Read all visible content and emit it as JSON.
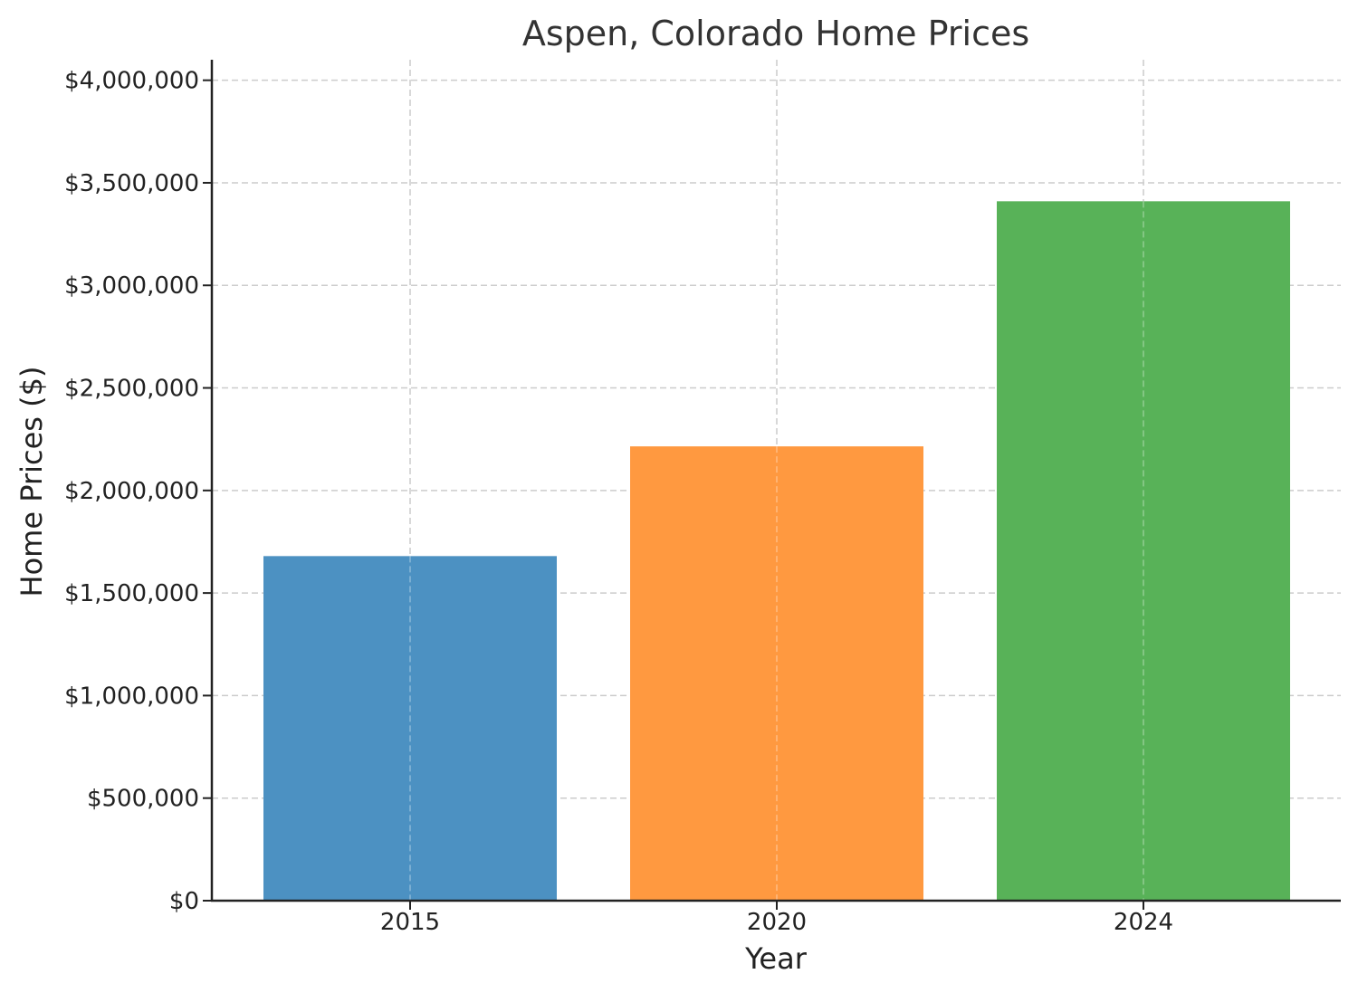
{
  "chart_data": {
    "type": "bar",
    "title": "Aspen, Colorado Home Prices",
    "xlabel": "Year",
    "ylabel": "Home Prices ($)",
    "categories": [
      "2015",
      "2020",
      "2024"
    ],
    "values": [
      1680000,
      2215000,
      3410000
    ],
    "colors": [
      "#4c91c2",
      "#ff9940",
      "#58b258"
    ],
    "ylim": [
      0,
      4100000
    ],
    "yticks": [
      0,
      500000,
      1000000,
      1500000,
      2000000,
      2500000,
      3000000,
      3500000,
      4000000
    ],
    "ytick_labels": [
      "$0",
      "$500,000",
      "$1,000,000",
      "$1,500,000",
      "$2,000,000",
      "$2,500,000",
      "$3,000,000",
      "$3,500,000",
      "$4,000,000"
    ],
    "grid": true,
    "legend": "none"
  }
}
